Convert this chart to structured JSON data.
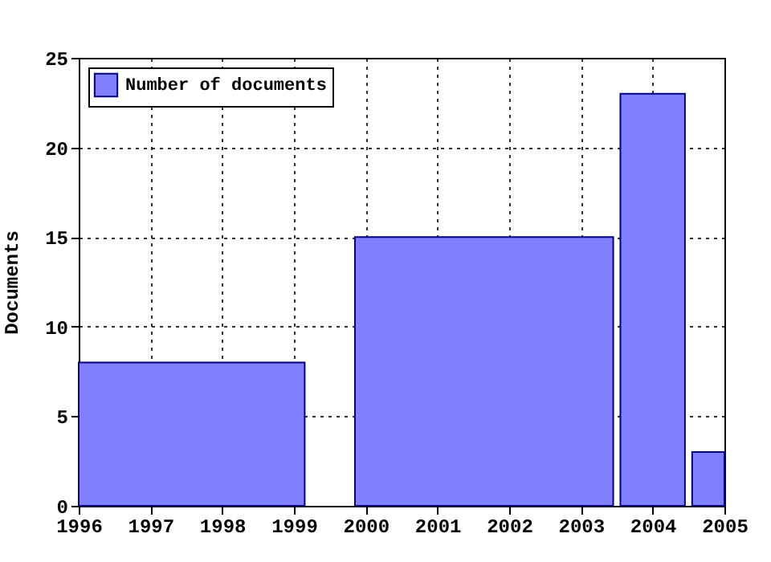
{
  "chart_data": {
    "type": "histogram",
    "bins": [
      1996,
      1999.15,
      1999.85,
      2003.45,
      2003.55,
      2004.45,
      2004.55,
      2005
    ],
    "series": [
      {
        "name": "Number of documents",
        "color": "#8080ff",
        "values": [
          8,
          null,
          15,
          null,
          23,
          null,
          3
        ]
      }
    ],
    "ylabel": "Documents",
    "xlim": [
      1996,
      2005
    ],
    "xticks": [
      1996,
      1997,
      1998,
      1999,
      2000,
      2001,
      2002,
      2003,
      2004,
      2005
    ],
    "ylim": [
      0,
      25
    ],
    "yticks": [
      0,
      5,
      10,
      15,
      20,
      25
    ],
    "grid": true,
    "legend": "top left"
  }
}
